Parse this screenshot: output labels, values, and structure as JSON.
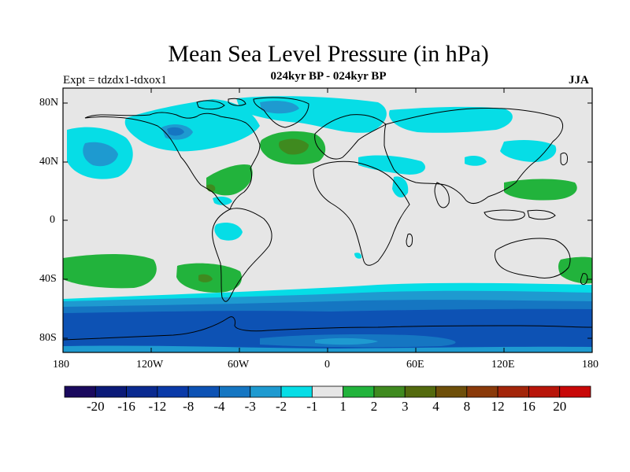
{
  "title": "Mean Sea Level Pressure (in hPa)",
  "subtitle_left": "Expt = tdzdx1-tdxox1",
  "subtitle_center": "024kyr BP - 024kyr BP",
  "subtitle_right": "JJA",
  "lat_labels": [
    "80N",
    "40N",
    "0",
    "40S",
    "80S"
  ],
  "lon_labels": [
    "180",
    "120W",
    "60W",
    "0",
    "60E",
    "120E",
    "180"
  ],
  "colorbar": {
    "colors": [
      "#1a0a5e",
      "#0b1a78",
      "#0a2a90",
      "#0a3aa8",
      "#0d52b4",
      "#1576c2",
      "#1e9ad0",
      "#06dde6",
      "#e6e6e6",
      "#22b33c",
      "#3f8a1f",
      "#536a0e",
      "#6e4f0a",
      "#8a3a0a",
      "#a3250a",
      "#b8150a",
      "#c80808"
    ],
    "labels": [
      "-20",
      "-16",
      "-12",
      "-8",
      "-4",
      "-3",
      "-2",
      "-1",
      "1",
      "2",
      "3",
      "4",
      "8",
      "12",
      "16",
      "20"
    ]
  },
  "colors": {
    "background": "#e6e6e6",
    "neg1": "#06dde6",
    "neg2": "#1e9ad0",
    "neg3": "#1576c2",
    "neg4": "#0d52b4",
    "pos1": "#22b33c",
    "pos2": "#3f8a1f"
  }
}
